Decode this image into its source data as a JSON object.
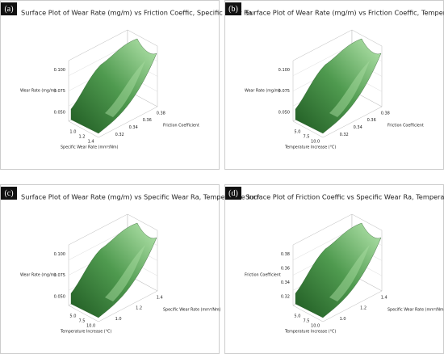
{
  "panels": [
    {
      "label": "(a)",
      "title": "Surface Plot of Wear Rate (mg/m) vs Friction Coeffic, Specific Wear Ra",
      "z_label": "Wear Rate (mg/m)",
      "z_ticks": [
        "0.100",
        "0.075",
        "0.050"
      ],
      "x_label": "Specific Wear Rate (mm³/Nm)",
      "x_ticks": [
        "1.0",
        "1.2",
        "1.4"
      ],
      "y_label": "Friction Coefficient",
      "y_ticks": [
        "0.38",
        "0.36",
        "0.34",
        "0.32"
      ]
    },
    {
      "label": "(b)",
      "title": "Surface Plot of Wear Rate (mg/m) vs Friction Coeffic, Temperature Incr",
      "z_label": "Wear Rate (mg/m)",
      "z_ticks": [
        "0.100",
        "0.075",
        "0.050"
      ],
      "x_label": "Temperature Increase (°C)",
      "x_ticks": [
        "5.0",
        "7.5",
        "10.0"
      ],
      "y_label": "Friction Coefficient",
      "y_ticks": [
        "0.38",
        "0.36",
        "0.34",
        "0.32"
      ]
    },
    {
      "label": "(c)",
      "title": "Surface Plot of Wear Rate (mg/m) vs Specific Wear Ra, Temperature Incr",
      "z_label": "Wear Rate (mg/m)",
      "z_ticks": [
        "0.100",
        "0.075",
        "0.050"
      ],
      "x_label": "Temperature Increase (°C)",
      "x_ticks": [
        "5.0",
        "7.5",
        "10.0"
      ],
      "y_label": "Specific Wear Rate (mm³/Nm)",
      "y_ticks": [
        "1.4",
        "1.2",
        "1.0"
      ]
    },
    {
      "label": "(d)",
      "title": "Surface Plot of Friction Coeffic vs Specific Wear Ra, Temperature Incr",
      "z_label": "Friction Coefficient",
      "z_ticks": [
        "0.38",
        "0.36",
        "0.34",
        "0.32"
      ],
      "x_label": "Temperature Increase (°C)",
      "x_ticks": [
        "5.0",
        "7.5",
        "10.0"
      ],
      "y_label": "Specific Wear Rate (mm³/Nm)",
      "y_ticks": [
        "1.4",
        "1.2",
        "1.0"
      ]
    }
  ]
}
